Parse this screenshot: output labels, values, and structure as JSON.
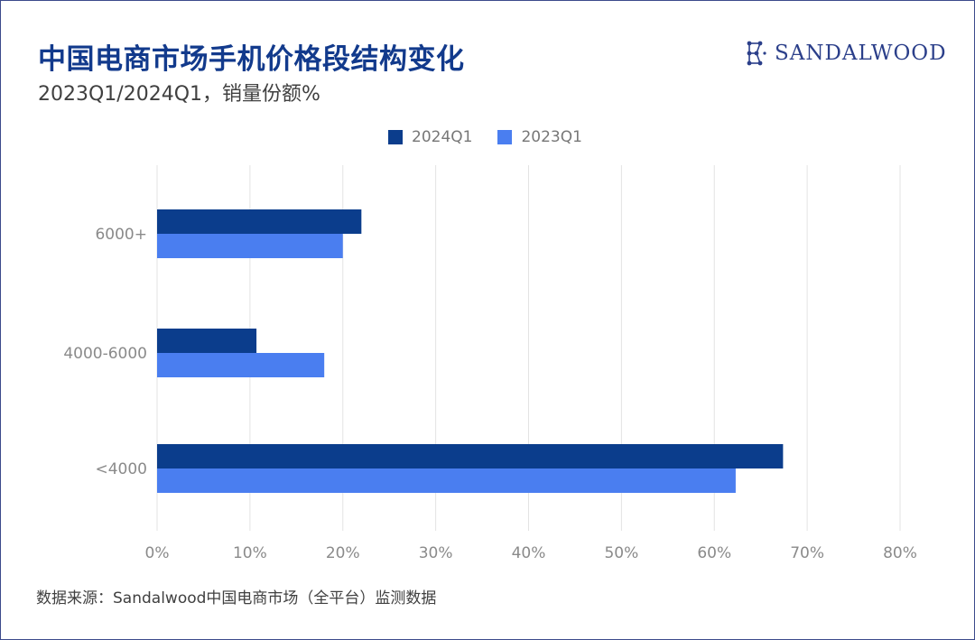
{
  "header": {
    "title": "中国电商市场手机价格段结构变化",
    "subtitle": "2023Q1/2024Q1，销量份额%",
    "brand": "SANDALWOOD",
    "brand_icon": "constellation-logo-icon"
  },
  "footer": {
    "source": "数据来源：Sandalwood中国电商市场（全平台）监测数据"
  },
  "colors": {
    "series_2024": "#0b3d8c",
    "series_2023": "#4a7ef0",
    "title": "#123a8c",
    "grid": "#e3e3e3",
    "tick": "#8a8a8a"
  },
  "chart_data": {
    "type": "bar",
    "orientation": "horizontal",
    "title": "中国电商市场手机价格段结构变化",
    "subtitle": "2023Q1/2024Q1，销量份额%",
    "categories": [
      "6000+",
      "4000-6000",
      "<4000"
    ],
    "series": [
      {
        "name": "2024Q1",
        "values": [
          22,
          10.7,
          67.4
        ]
      },
      {
        "name": "2023Q1",
        "values": [
          20,
          18,
          62.3
        ]
      }
    ],
    "xlim": [
      0,
      80
    ],
    "x_ticks": [
      "0%",
      "10%",
      "20%",
      "30%",
      "40%",
      "50%",
      "60%",
      "70%",
      "80%"
    ],
    "grid": "vertical",
    "legend_position": "top-center",
    "xlabel": "",
    "ylabel": ""
  }
}
